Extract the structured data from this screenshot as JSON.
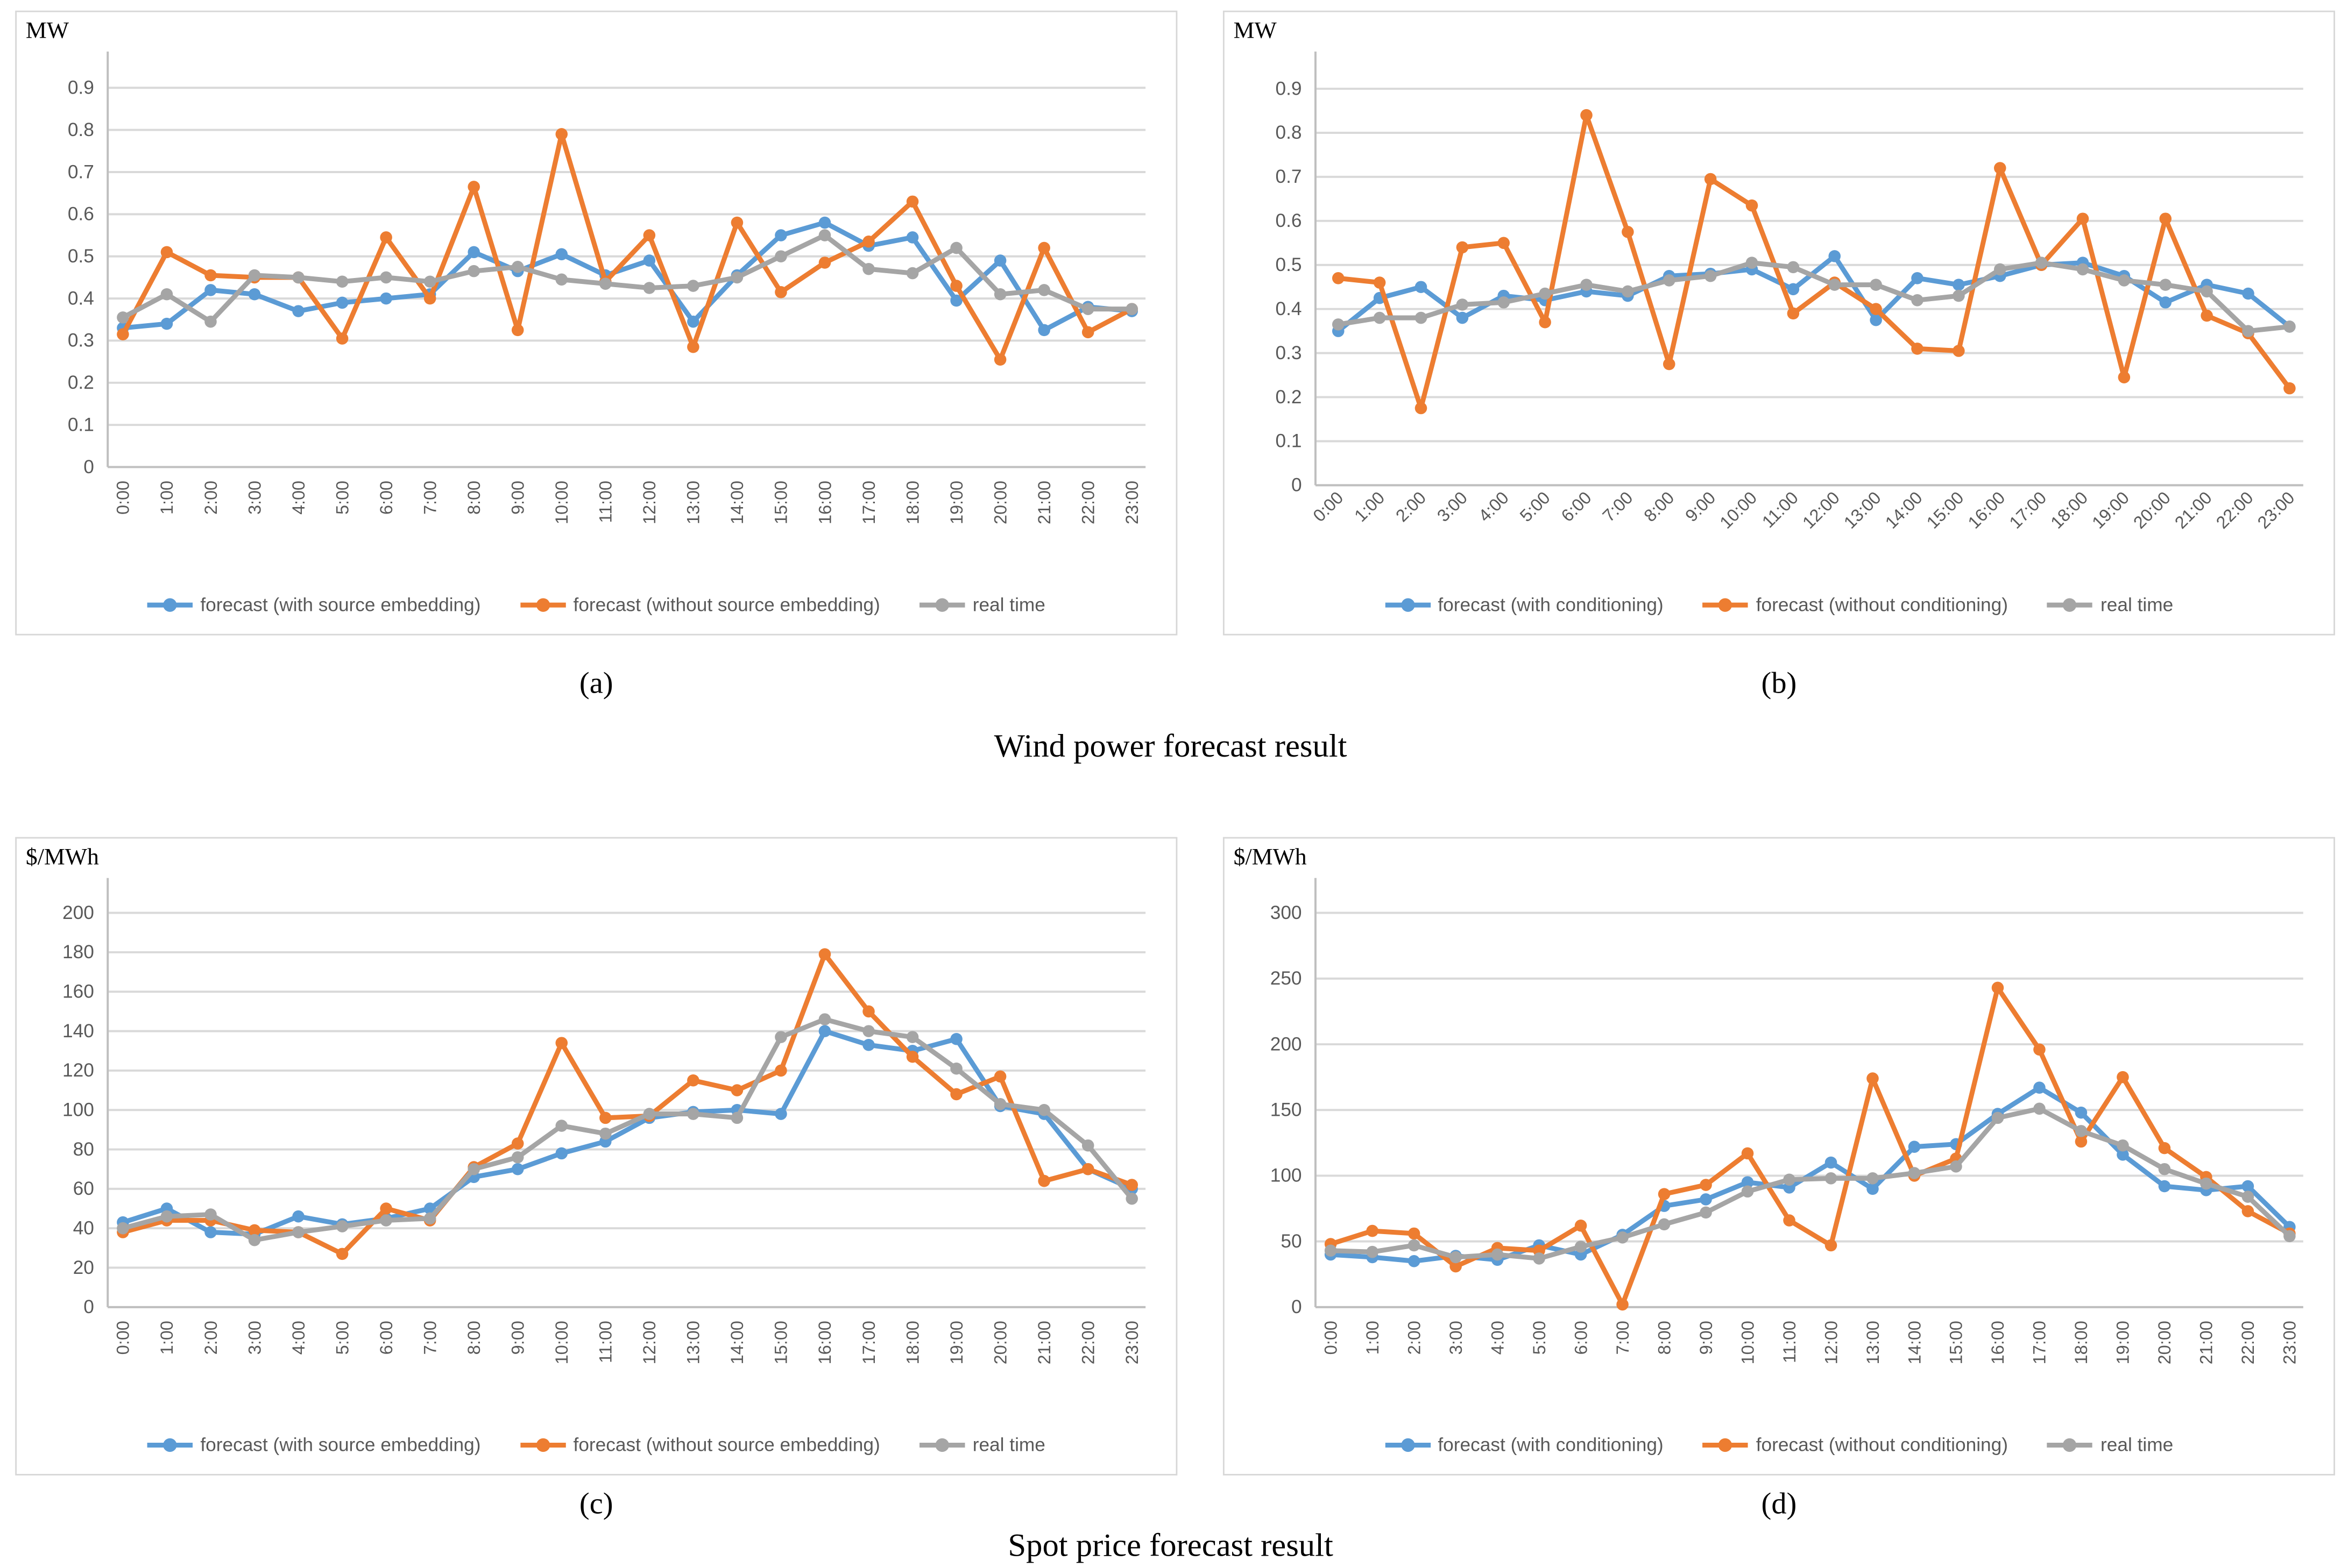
{
  "page": {
    "captions": {
      "a": "(a)",
      "b": "(b)",
      "c": "(c)",
      "d": "(d)"
    },
    "section_titles": {
      "wind": "Wind power forecast result",
      "spot": "Spot price forecast result"
    }
  },
  "colors": {
    "forecast_primary": "#5B9BD5",
    "forecast_secondary": "#ED7D31",
    "real_time": "#A5A5A5",
    "gridline": "#D9D9D9",
    "axis": "#BFBFBF",
    "tick_text": "#595959"
  },
  "chart_data": [
    {
      "id": "a",
      "type": "line",
      "unit_label": "MW",
      "caption": "(a)",
      "categories": [
        "0:00",
        "1:00",
        "2:00",
        "3:00",
        "4:00",
        "5:00",
        "6:00",
        "7:00",
        "8:00",
        "9:00",
        "10:00",
        "11:00",
        "12:00",
        "13:00",
        "14:00",
        "15:00",
        "16:00",
        "17:00",
        "18:00",
        "19:00",
        "20:00",
        "21:00",
        "22:00",
        "23:00"
      ],
      "y_ticks": [
        0,
        0.1,
        0.2,
        0.3,
        0.4,
        0.5,
        0.6,
        0.7,
        0.8,
        0.9
      ],
      "ylim": [
        0,
        0.95
      ],
      "grid": true,
      "legend_position": "bottom",
      "x_tick_angle": -90,
      "series": [
        {
          "name": "forecast (with source embedding)",
          "color_key": "forecast_primary",
          "values": [
            0.33,
            0.34,
            0.42,
            0.41,
            0.37,
            0.39,
            0.4,
            0.41,
            0.51,
            0.465,
            0.505,
            0.455,
            0.49,
            0.345,
            0.455,
            0.55,
            0.58,
            0.525,
            0.545,
            0.395,
            0.49,
            0.325,
            0.38,
            0.37
          ]
        },
        {
          "name": "forecast (without source embedding)",
          "color_key": "forecast_secondary",
          "values": [
            0.315,
            0.51,
            0.455,
            0.45,
            0.45,
            0.305,
            0.545,
            0.4,
            0.665,
            0.325,
            0.79,
            0.44,
            0.55,
            0.285,
            0.58,
            0.415,
            0.485,
            0.535,
            0.63,
            0.43,
            0.255,
            0.52,
            0.32,
            0.375
          ]
        },
        {
          "name": "real time",
          "color_key": "real_time",
          "values": [
            0.355,
            0.41,
            0.345,
            0.455,
            0.45,
            0.44,
            0.45,
            0.44,
            0.465,
            0.475,
            0.445,
            0.435,
            0.425,
            0.43,
            0.45,
            0.5,
            0.55,
            0.47,
            0.46,
            0.52,
            0.41,
            0.42,
            0.375,
            0.375
          ]
        }
      ]
    },
    {
      "id": "b",
      "type": "line",
      "unit_label": "MW",
      "caption": "(b)",
      "categories": [
        "0:00",
        "1:00",
        "2:00",
        "3:00",
        "4:00",
        "5:00",
        "6:00",
        "7:00",
        "8:00",
        "9:00",
        "10:00",
        "11:00",
        "12:00",
        "13:00",
        "14:00",
        "15:00",
        "16:00",
        "17:00",
        "18:00",
        "19:00",
        "20:00",
        "21:00",
        "22:00",
        "23:00"
      ],
      "y_ticks": [
        0,
        0.1,
        0.2,
        0.3,
        0.4,
        0.5,
        0.6,
        0.7,
        0.8,
        0.9
      ],
      "ylim": [
        0,
        0.95
      ],
      "grid": true,
      "legend_position": "bottom",
      "x_tick_angle": -45,
      "series": [
        {
          "name": "forecast (with conditioning)",
          "color_key": "forecast_primary",
          "values": [
            0.35,
            0.425,
            0.45,
            0.38,
            0.43,
            0.42,
            0.44,
            0.43,
            0.475,
            0.48,
            0.49,
            0.445,
            0.52,
            0.375,
            0.47,
            0.455,
            0.475,
            0.5,
            0.505,
            0.475,
            0.415,
            0.455,
            0.435,
            0.36
          ]
        },
        {
          "name": "forecast (without conditioning)",
          "color_key": "forecast_secondary",
          "values": [
            0.47,
            0.46,
            0.175,
            0.54,
            0.55,
            0.37,
            0.84,
            0.575,
            0.275,
            0.695,
            0.635,
            0.39,
            0.46,
            0.4,
            0.31,
            0.305,
            0.72,
            0.5,
            0.605,
            0.245,
            0.605,
            0.385,
            0.345,
            0.22
          ]
        },
        {
          "name": "real time",
          "color_key": "real_time",
          "values": [
            0.365,
            0.38,
            0.38,
            0.41,
            0.415,
            0.435,
            0.455,
            0.44,
            0.465,
            0.475,
            0.505,
            0.495,
            0.455,
            0.455,
            0.42,
            0.43,
            0.49,
            0.505,
            0.49,
            0.465,
            0.455,
            0.44,
            0.35,
            0.36
          ]
        }
      ]
    },
    {
      "id": "c",
      "type": "line",
      "unit_label": "$/MWh",
      "caption": "(c)",
      "categories": [
        "0:00",
        "1:00",
        "2:00",
        "3:00",
        "4:00",
        "5:00",
        "6:00",
        "7:00",
        "8:00",
        "9:00",
        "10:00",
        "11:00",
        "12:00",
        "13:00",
        "14:00",
        "15:00",
        "16:00",
        "17:00",
        "18:00",
        "19:00",
        "20:00",
        "21:00",
        "22:00",
        "23:00"
      ],
      "y_ticks": [
        0,
        20,
        40,
        60,
        80,
        100,
        120,
        140,
        160,
        180,
        200
      ],
      "ylim": [
        0,
        210
      ],
      "grid": true,
      "legend_position": "bottom",
      "x_tick_angle": -90,
      "series": [
        {
          "name": "forecast (with source embedding)",
          "color_key": "forecast_primary",
          "values": [
            43,
            50,
            38,
            37,
            46,
            42,
            45,
            50,
            66,
            70,
            78,
            84,
            96,
            99,
            100,
            98,
            140,
            133,
            130,
            136,
            102,
            98,
            70,
            60
          ]
        },
        {
          "name": "forecast (without source embedding)",
          "color_key": "forecast_secondary",
          "values": [
            38,
            44,
            44,
            39,
            38,
            27,
            50,
            44,
            71,
            83,
            134,
            96,
            97,
            115,
            110,
            120,
            179,
            150,
            127,
            108,
            117,
            64,
            70,
            62
          ]
        },
        {
          "name": "real time",
          "color_key": "real_time",
          "values": [
            40,
            46,
            47,
            34,
            38,
            41,
            44,
            45,
            70,
            76,
            92,
            88,
            98,
            98,
            96,
            137,
            146,
            140,
            137,
            121,
            103,
            100,
            82,
            55
          ]
        }
      ]
    },
    {
      "id": "d",
      "type": "line",
      "unit_label": "$/MWh",
      "caption": "(d)",
      "categories": [
        "0:00",
        "1:00",
        "2:00",
        "3:00",
        "4:00",
        "5:00",
        "6:00",
        "7:00",
        "8:00",
        "9:00",
        "10:00",
        "11:00",
        "12:00",
        "13:00",
        "14:00",
        "15:00",
        "16:00",
        "17:00",
        "18:00",
        "19:00",
        "20:00",
        "21:00",
        "22:00",
        "23:00"
      ],
      "y_ticks": [
        0,
        50,
        100,
        150,
        200,
        250,
        300
      ],
      "ylim": [
        0,
        315
      ],
      "grid": true,
      "legend_position": "bottom",
      "x_tick_angle": -90,
      "series": [
        {
          "name": "forecast (with conditioning)",
          "color_key": "forecast_primary",
          "values": [
            40,
            38,
            35,
            39,
            36,
            47,
            40,
            55,
            77,
            82,
            95,
            91,
            110,
            90,
            122,
            124,
            147,
            167,
            148,
            116,
            92,
            89,
            92,
            61
          ]
        },
        {
          "name": "forecast (without conditioning)",
          "color_key": "forecast_secondary",
          "values": [
            48,
            58,
            56,
            31,
            45,
            43,
            62,
            2,
            86,
            93,
            117,
            66,
            47,
            174,
            100,
            113,
            243,
            196,
            126,
            175,
            121,
            99,
            73,
            56
          ]
        },
        {
          "name": "real time",
          "color_key": "real_time",
          "values": [
            43,
            42,
            47,
            38,
            40,
            37,
            46,
            53,
            63,
            72,
            88,
            97,
            98,
            98,
            102,
            107,
            144,
            151,
            134,
            123,
            105,
            94,
            84,
            54
          ]
        }
      ]
    }
  ]
}
